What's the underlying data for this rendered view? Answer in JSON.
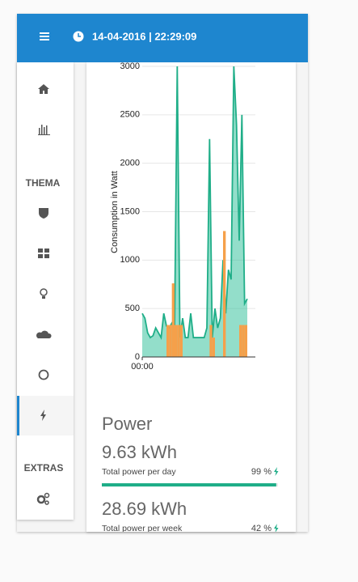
{
  "header": {
    "datetime": "14-04-2016 | 22:29:09"
  },
  "sidebar": {
    "sections": [
      "THEMA",
      "EXTRAS"
    ]
  },
  "chart_data": {
    "type": "line",
    "y_label": "Consumption in Watt",
    "x": [
      0,
      1,
      2,
      3,
      4,
      5,
      6,
      7,
      8,
      9,
      10,
      11,
      12,
      13,
      14,
      15,
      16,
      17,
      18,
      19,
      20,
      21,
      22,
      23,
      24,
      25,
      26,
      27,
      28,
      29,
      30,
      31,
      32,
      33,
      34,
      35,
      36,
      37,
      38,
      39
    ],
    "xlim": [
      0,
      42
    ],
    "xticks": [
      {
        "value": 0,
        "label": "00:00"
      }
    ],
    "ylim": [
      0,
      3000
    ],
    "yticks": [
      0,
      500,
      1000,
      1500,
      2000,
      2500,
      3000
    ],
    "grid": true,
    "series": [
      {
        "color": "#1fae88",
        "fill": "rgba(40,190,150,0.5)",
        "values": [
          450,
          400,
          250,
          200,
          220,
          300,
          250,
          200,
          450,
          320,
          300,
          350,
          300,
          3000,
          200,
          400,
          200,
          200,
          450,
          200,
          200,
          200,
          200,
          200,
          300,
          2250,
          200,
          500,
          300,
          400,
          1000,
          450,
          900,
          800,
          3000,
          2400,
          1200,
          2500,
          550,
          600
        ]
      },
      {
        "color": "#f5a04a",
        "style": "bar",
        "values": [
          0,
          0,
          0,
          0,
          0,
          0,
          0,
          0,
          0,
          330,
          330,
          760,
          330,
          330,
          330,
          0,
          0,
          0,
          0,
          0,
          0,
          0,
          0,
          0,
          0,
          330,
          200,
          0,
          0,
          0,
          1300,
          0,
          0,
          0,
          0,
          0,
          330,
          330,
          330,
          0
        ]
      }
    ]
  },
  "power": {
    "title": "Power",
    "items": [
      {
        "value": "9.63 kWh",
        "label": "Total power per day",
        "percent": 99,
        "percent_label": "99 %"
      },
      {
        "value": "28.69 kWh",
        "label": "Total power per week",
        "percent": 42,
        "percent_label": "42 %"
      }
    ]
  }
}
